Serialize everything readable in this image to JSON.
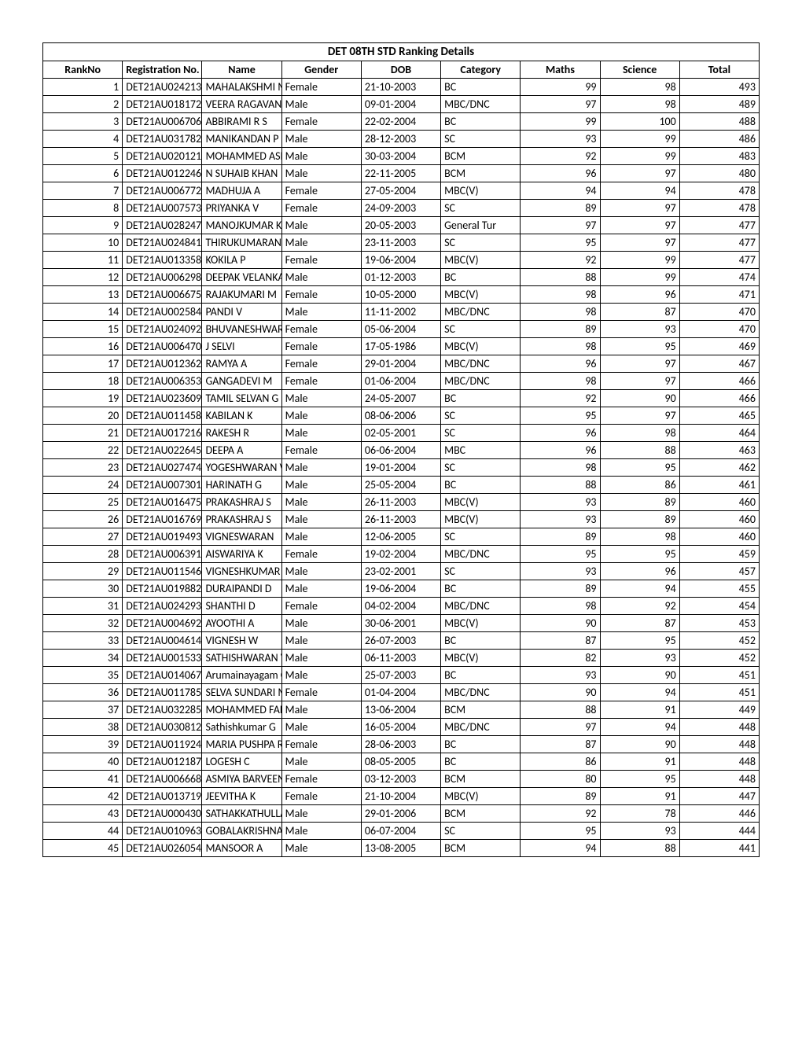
{
  "title": "DET 08TH STD Ranking Details",
  "columns": [
    "RankNo",
    "Registration No.",
    "Name",
    "Gender",
    "DOB",
    "Category",
    "Maths",
    "Science",
    "Total"
  ],
  "rows": [
    {
      "rank": 1,
      "reg": "DET21AU024213",
      "name": "MAHALAKSHMI M",
      "gender": "Female",
      "dob": "21-10-2003",
      "cat": "BC",
      "maths": 99,
      "science": 98,
      "total": 493
    },
    {
      "rank": 2,
      "reg": "DET21AU018172",
      "name": "VEERA RAGAVAN K",
      "gender": "Male",
      "dob": "09-01-2004",
      "cat": "MBC/DNC",
      "maths": 97,
      "science": 98,
      "total": 489
    },
    {
      "rank": 3,
      "reg": "DET21AU006706",
      "name": "ABBIRAMI R S",
      "gender": "Female",
      "dob": "22-02-2004",
      "cat": "BC",
      "maths": 99,
      "science": 100,
      "total": 488
    },
    {
      "rank": 4,
      "reg": "DET21AU031782",
      "name": "MANIKANDAN P",
      "gender": "Male",
      "dob": "28-12-2003",
      "cat": "SC",
      "maths": 93,
      "science": 99,
      "total": 486
    },
    {
      "rank": 5,
      "reg": "DET21AU020121",
      "name": "MOHAMMED ASHIK N",
      "gender": "Male",
      "dob": "30-03-2004",
      "cat": "BCM",
      "maths": 92,
      "science": 99,
      "total": 483
    },
    {
      "rank": 6,
      "reg": "DET21AU012246",
      "name": "N SUHAIB KHAN",
      "gender": "Male",
      "dob": "22-11-2005",
      "cat": "BCM",
      "maths": 96,
      "science": 97,
      "total": 480
    },
    {
      "rank": 7,
      "reg": "DET21AU006772",
      "name": "MADHUJA A",
      "gender": "Female",
      "dob": "27-05-2004",
      "cat": "MBC(V)",
      "maths": 94,
      "science": 94,
      "total": 478
    },
    {
      "rank": 8,
      "reg": "DET21AU007573",
      "name": "PRIYANKA V",
      "gender": "Female",
      "dob": "24-09-2003",
      "cat": "SC",
      "maths": 89,
      "science": 97,
      "total": 478
    },
    {
      "rank": 9,
      "reg": "DET21AU028247",
      "name": "MANOJKUMAR K",
      "gender": "Male",
      "dob": "20-05-2003",
      "cat": "General Tur",
      "maths": 97,
      "science": 97,
      "total": 477
    },
    {
      "rank": 10,
      "reg": "DET21AU024841",
      "name": "THIRUKUMARAN V",
      "gender": "Male",
      "dob": "23-11-2003",
      "cat": "SC",
      "maths": 95,
      "science": 97,
      "total": 477
    },
    {
      "rank": 11,
      "reg": "DET21AU013358",
      "name": "KOKILA P",
      "gender": "Female",
      "dob": "19-06-2004",
      "cat": "MBC(V)",
      "maths": 92,
      "science": 99,
      "total": 477
    },
    {
      "rank": 12,
      "reg": "DET21AU006298",
      "name": "DEEPAK VELANKANNI RAJA S",
      "gender": "Male",
      "dob": "01-12-2003",
      "cat": "BC",
      "maths": 88,
      "science": 99,
      "total": 474
    },
    {
      "rank": 13,
      "reg": "DET21AU006675",
      "name": "RAJAKUMARI M",
      "gender": "Female",
      "dob": "10-05-2000",
      "cat": "MBC(V)",
      "maths": 98,
      "science": 96,
      "total": 471
    },
    {
      "rank": 14,
      "reg": "DET21AU002584",
      "name": "PANDI V",
      "gender": "Male",
      "dob": "11-11-2002",
      "cat": "MBC/DNC",
      "maths": 98,
      "science": 87,
      "total": 470
    },
    {
      "rank": 15,
      "reg": "DET21AU024092",
      "name": "BHUVANESHWARI K",
      "gender": "Female",
      "dob": "05-06-2004",
      "cat": "SC",
      "maths": 89,
      "science": 93,
      "total": 470
    },
    {
      "rank": 16,
      "reg": "DET21AU006470",
      "name": "J SELVI",
      "gender": "Female",
      "dob": "17-05-1986",
      "cat": "MBC(V)",
      "maths": 98,
      "science": 95,
      "total": 469
    },
    {
      "rank": 17,
      "reg": "DET21AU012362",
      "name": "RAMYA A",
      "gender": "Female",
      "dob": "29-01-2004",
      "cat": "MBC/DNC",
      "maths": 96,
      "science": 97,
      "total": 467
    },
    {
      "rank": 18,
      "reg": "DET21AU006353",
      "name": "GANGADEVI M",
      "gender": "Female",
      "dob": "01-06-2004",
      "cat": "MBC/DNC",
      "maths": 98,
      "science": 97,
      "total": 466
    },
    {
      "rank": 19,
      "reg": "DET21AU023609",
      "name": "TAMIL SELVAN G",
      "gender": "Male",
      "dob": "24-05-2007",
      "cat": "BC",
      "maths": 92,
      "science": 90,
      "total": 466
    },
    {
      "rank": 20,
      "reg": "DET21AU011458",
      "name": "KABILAN K",
      "gender": "Male",
      "dob": "08-06-2006",
      "cat": "SC",
      "maths": 95,
      "science": 97,
      "total": 465
    },
    {
      "rank": 21,
      "reg": "DET21AU017216",
      "name": "RAKESH R",
      "gender": "Male",
      "dob": "02-05-2001",
      "cat": "SC",
      "maths": 96,
      "science": 98,
      "total": 464
    },
    {
      "rank": 22,
      "reg": "DET21AU022645",
      "name": "DEEPA A",
      "gender": "Female",
      "dob": "06-06-2004",
      "cat": "MBC",
      "maths": 96,
      "science": 88,
      "total": 463
    },
    {
      "rank": 23,
      "reg": "DET21AU027474",
      "name": "YOGESHWARAN V",
      "gender": "Male",
      "dob": "19-01-2004",
      "cat": "SC",
      "maths": 98,
      "science": 95,
      "total": 462
    },
    {
      "rank": 24,
      "reg": "DET21AU007301",
      "name": "HARINATH G",
      "gender": "Male",
      "dob": "25-05-2004",
      "cat": "BC",
      "maths": 88,
      "science": 86,
      "total": 461
    },
    {
      "rank": 25,
      "reg": "DET21AU016475",
      "name": "PRAKASHRAJ S",
      "gender": "Male",
      "dob": "26-11-2003",
      "cat": "MBC(V)",
      "maths": 93,
      "science": 89,
      "total": 460
    },
    {
      "rank": 26,
      "reg": "DET21AU016769",
      "name": "PRAKASHRAJ S",
      "gender": "Male",
      "dob": "26-11-2003",
      "cat": "MBC(V)",
      "maths": 93,
      "science": 89,
      "total": 460
    },
    {
      "rank": 27,
      "reg": "DET21AU019493",
      "name": "VIGNESWARAN",
      "gender": "Male",
      "dob": "12-06-2005",
      "cat": "SC",
      "maths": 89,
      "science": 98,
      "total": 460
    },
    {
      "rank": 28,
      "reg": "DET21AU006391",
      "name": "AISWARIYA K",
      "gender": "Female",
      "dob": "19-02-2004",
      "cat": "MBC/DNC",
      "maths": 95,
      "science": 95,
      "total": 459
    },
    {
      "rank": 29,
      "reg": "DET21AU011546",
      "name": "VIGNESHKUMAR V C",
      "gender": "Male",
      "dob": "23-02-2001",
      "cat": "SC",
      "maths": 93,
      "science": 96,
      "total": 457
    },
    {
      "rank": 30,
      "reg": "DET21AU019882",
      "name": "DURAIPANDI D",
      "gender": "Male",
      "dob": "19-06-2004",
      "cat": "BC",
      "maths": 89,
      "science": 94,
      "total": 455
    },
    {
      "rank": 31,
      "reg": "DET21AU024293",
      "name": "SHANTHI D",
      "gender": "Female",
      "dob": "04-02-2004",
      "cat": "MBC/DNC",
      "maths": 98,
      "science": 92,
      "total": 454
    },
    {
      "rank": 32,
      "reg": "DET21AU004692",
      "name": "AYOOTHI A",
      "gender": "Male",
      "dob": "30-06-2001",
      "cat": "MBC(V)",
      "maths": 90,
      "science": 87,
      "total": 453
    },
    {
      "rank": 33,
      "reg": "DET21AU004614",
      "name": "VIGNESH W",
      "gender": "Male",
      "dob": "26-07-2003",
      "cat": "BC",
      "maths": 87,
      "science": 95,
      "total": 452
    },
    {
      "rank": 34,
      "reg": "DET21AU001533",
      "name": "SATHISHWARAN V S",
      "gender": "Male",
      "dob": "06-11-2003",
      "cat": "MBC(V)",
      "maths": 82,
      "science": 93,
      "total": 452
    },
    {
      "rank": 35,
      "reg": "DET21AU014067",
      "name": "Arumainayagam C",
      "gender": "Male",
      "dob": "25-07-2003",
      "cat": "BC",
      "maths": 93,
      "science": 90,
      "total": 451
    },
    {
      "rank": 36,
      "reg": "DET21AU011785",
      "name": "SELVA SUNDARI M",
      "gender": "Female",
      "dob": "01-04-2004",
      "cat": "MBC/DNC",
      "maths": 90,
      "science": 94,
      "total": 451
    },
    {
      "rank": 37,
      "reg": "DET21AU032285",
      "name": "MOHAMMED FAIZAL S S",
      "gender": "Male",
      "dob": "13-06-2004",
      "cat": "BCM",
      "maths": 88,
      "science": 91,
      "total": 449
    },
    {
      "rank": 38,
      "reg": "DET21AU030812",
      "name": "Sathishkumar G",
      "gender": "Male",
      "dob": "16-05-2004",
      "cat": "MBC/DNC",
      "maths": 97,
      "science": 94,
      "total": 448
    },
    {
      "rank": 39,
      "reg": "DET21AU011924",
      "name": "MARIA PUSHPA RANI M",
      "gender": "Female",
      "dob": "28-06-2003",
      "cat": "BC",
      "maths": 87,
      "science": 90,
      "total": 448
    },
    {
      "rank": 40,
      "reg": "DET21AU012187",
      "name": "LOGESH C",
      "gender": "Male",
      "dob": "08-05-2005",
      "cat": "BC",
      "maths": 86,
      "science": 91,
      "total": 448
    },
    {
      "rank": 41,
      "reg": "DET21AU006668",
      "name": "ASMIYA BARVEEN M",
      "gender": "Female",
      "dob": "03-12-2003",
      "cat": "BCM",
      "maths": 80,
      "science": 95,
      "total": 448
    },
    {
      "rank": 42,
      "reg": "DET21AU013719",
      "name": "JEEVITHA K",
      "gender": "Female",
      "dob": "21-10-2004",
      "cat": "MBC(V)",
      "maths": 89,
      "science": 91,
      "total": 447
    },
    {
      "rank": 43,
      "reg": "DET21AU000430",
      "name": "SATHAKKATHULLA M",
      "gender": "Male",
      "dob": "29-01-2006",
      "cat": "BCM",
      "maths": 92,
      "science": 78,
      "total": 446
    },
    {
      "rank": 44,
      "reg": "DET21AU010963",
      "name": "GOBALAKRISHNAN S",
      "gender": "Male",
      "dob": "06-07-2004",
      "cat": "SC",
      "maths": 95,
      "science": 93,
      "total": 444
    },
    {
      "rank": 45,
      "reg": "DET21AU026054",
      "name": "MANSOOR A",
      "gender": "Male",
      "dob": "13-08-2005",
      "cat": "BCM",
      "maths": 94,
      "science": 88,
      "total": 441
    }
  ]
}
